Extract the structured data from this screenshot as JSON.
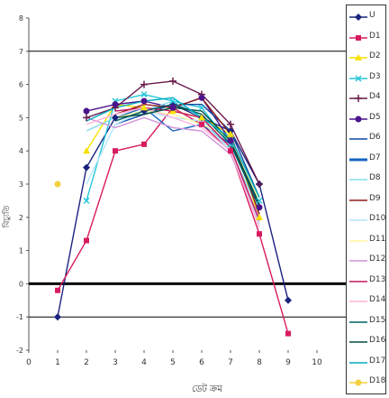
{
  "chart_data": {
    "type": "line",
    "title": "",
    "xlabel": "ডেট ক্রম",
    "ylabel": "বিচ্যুতি",
    "xlim": [
      0,
      11
    ],
    "ylim": [
      -2,
      8
    ],
    "x_ticks": [
      "0",
      "1",
      "2",
      "3",
      "4",
      "5",
      "6",
      "7",
      "8",
      "9",
      "10"
    ],
    "y_ticks": [
      "-2",
      "-1",
      "0",
      "1",
      "2",
      "3",
      "4",
      "5",
      "6",
      "7",
      "8"
    ],
    "reference_lines": [
      {
        "y": 0,
        "weight": "thick"
      },
      {
        "y": -1,
        "weight": "thin"
      },
      {
        "y": 7,
        "weight": "thin"
      }
    ],
    "series": [
      {
        "name": "U",
        "color": "#1a237e",
        "marker": "diamond",
        "points": [
          [
            1,
            -1
          ],
          [
            2,
            3.5
          ],
          [
            3,
            5
          ],
          [
            4,
            5.2
          ],
          [
            5,
            5.4
          ],
          [
            6,
            5
          ],
          [
            7,
            4.6
          ],
          [
            8,
            3
          ],
          [
            9,
            -0.5
          ]
        ]
      },
      {
        "name": "D1",
        "color": "#d81b60",
        "marker": "square",
        "points": [
          [
            1,
            -0.2
          ],
          [
            2,
            1.3
          ],
          [
            3,
            4
          ],
          [
            4,
            4.2
          ],
          [
            5,
            5.3
          ],
          [
            6,
            4.8
          ],
          [
            7,
            4
          ],
          [
            8,
            1.5
          ],
          [
            9,
            -1.5
          ]
        ]
      },
      {
        "name": "D2",
        "color": "#f9e100",
        "marker": "triangle",
        "points": [
          [
            2,
            4
          ],
          [
            3,
            5.4
          ],
          [
            4,
            5.3
          ],
          [
            5,
            5.2
          ],
          [
            6,
            5
          ],
          [
            7,
            4.5
          ],
          [
            8,
            2
          ]
        ]
      },
      {
        "name": "D3",
        "color": "#26c6da",
        "marker": "x",
        "points": [
          [
            2,
            2.5
          ],
          [
            3,
            5.5
          ],
          [
            4,
            5.7
          ],
          [
            5,
            5.5
          ],
          [
            6,
            5.3
          ],
          [
            7,
            4.2
          ],
          [
            8,
            2.5
          ]
        ]
      },
      {
        "name": "D4",
        "color": "#6a1b4d",
        "marker": "star",
        "points": [
          [
            2,
            5
          ],
          [
            3,
            5.3
          ],
          [
            4,
            6
          ],
          [
            5,
            6.1
          ],
          [
            6,
            5.7
          ],
          [
            7,
            4.8
          ],
          [
            8,
            3
          ]
        ]
      },
      {
        "name": "D5",
        "color": "#4a148c",
        "marker": "circle",
        "points": [
          [
            2,
            5.2
          ],
          [
            3,
            5.4
          ],
          [
            4,
            5.5
          ],
          [
            5,
            5.3
          ],
          [
            6,
            5.6
          ],
          [
            7,
            4.3
          ],
          [
            8,
            2.3
          ]
        ]
      },
      {
        "name": "D6",
        "color": "#0d47a1",
        "marker": "none",
        "points": [
          [
            3,
            4.8
          ],
          [
            4,
            5.1
          ],
          [
            5,
            5.4
          ],
          [
            6,
            5.4
          ],
          [
            7,
            4.6
          ],
          [
            8,
            2.6
          ]
        ]
      },
      {
        "name": "D7",
        "color": "#1565c0",
        "marker": "none",
        "points": [
          [
            3,
            5
          ],
          [
            4,
            5.3
          ],
          [
            5,
            4.6
          ],
          [
            6,
            4.8
          ],
          [
            7,
            4.2
          ],
          [
            8,
            2.4
          ]
        ]
      },
      {
        "name": "D8",
        "color": "#80deea",
        "marker": "none",
        "points": [
          [
            2,
            4.6
          ],
          [
            3,
            5
          ],
          [
            4,
            5.2
          ],
          [
            5,
            5.5
          ],
          [
            6,
            5
          ],
          [
            7,
            4
          ],
          [
            8,
            2.2
          ]
        ]
      },
      {
        "name": "D9",
        "color": "#8d1b1b",
        "marker": "none",
        "points": [
          [
            3,
            5.1
          ],
          [
            4,
            5.4
          ],
          [
            5,
            5.3
          ],
          [
            6,
            5.6
          ],
          [
            7,
            4.5
          ],
          [
            8,
            2.1
          ]
        ]
      },
      {
        "name": "D10",
        "color": "#b3e5fc",
        "marker": "none",
        "points": [
          [
            2,
            3
          ],
          [
            3,
            4.8
          ],
          [
            4,
            5.2
          ],
          [
            5,
            5
          ],
          [
            6,
            4.9
          ],
          [
            7,
            4
          ],
          [
            8,
            1.8
          ]
        ]
      },
      {
        "name": "D11",
        "color": "#fff59d",
        "marker": "none",
        "points": [
          [
            3,
            5
          ],
          [
            4,
            5.2
          ],
          [
            5,
            5.1
          ],
          [
            6,
            4.8
          ],
          [
            7,
            4.4
          ],
          [
            8,
            2.5
          ]
        ]
      },
      {
        "name": "D12",
        "color": "#ce93d8",
        "marker": "none",
        "points": [
          [
            2,
            5
          ],
          [
            3,
            4.7
          ],
          [
            4,
            5
          ],
          [
            5,
            4.7
          ],
          [
            6,
            4.6
          ],
          [
            7,
            3.9
          ],
          [
            8,
            2
          ]
        ]
      },
      {
        "name": "D13",
        "color": "#c2185b",
        "marker": "none",
        "points": [
          [
            3,
            5.2
          ],
          [
            4,
            5.3
          ],
          [
            5,
            5.2
          ],
          [
            6,
            5
          ],
          [
            7,
            4.1
          ],
          [
            8,
            1.9
          ]
        ]
      },
      {
        "name": "D14",
        "color": "#ffb3d9",
        "marker": "none",
        "points": [
          [
            2,
            4.8
          ],
          [
            3,
            5.1
          ],
          [
            4,
            5.3
          ],
          [
            5,
            5
          ],
          [
            6,
            4.7
          ],
          [
            7,
            4
          ],
          [
            8,
            1.7
          ]
        ]
      },
      {
        "name": "D15",
        "color": "#006064",
        "marker": "none",
        "points": [
          [
            3,
            4.9
          ],
          [
            4,
            5.2
          ],
          [
            5,
            5.4
          ],
          [
            6,
            5.1
          ],
          [
            7,
            4.2
          ],
          [
            8,
            2.3
          ]
        ]
      },
      {
        "name": "D16",
        "color": "#004d40",
        "marker": "none",
        "points": [
          [
            3,
            5
          ],
          [
            4,
            5.1
          ],
          [
            5,
            5.3
          ],
          [
            6,
            5.2
          ],
          [
            7,
            4.3
          ],
          [
            8,
            2.4
          ]
        ]
      },
      {
        "name": "D17",
        "color": "#00acc1",
        "marker": "none",
        "points": [
          [
            2,
            4.9
          ],
          [
            3,
            5.3
          ],
          [
            4,
            5.5
          ],
          [
            5,
            5.6
          ],
          [
            6,
            5
          ],
          [
            7,
            4.4
          ],
          [
            8,
            2.6
          ]
        ]
      },
      {
        "name": "D18",
        "color": "#f4d03f",
        "marker": "circle",
        "points": [
          [
            1,
            3
          ]
        ]
      }
    ],
    "legend_position": "right",
    "grid": false
  },
  "legend": {
    "items": [
      "U",
      "D1",
      "D2",
      "D3",
      "D4",
      "D5",
      "D6",
      "D7",
      "D8",
      "D9",
      "D10",
      "D11",
      "D12",
      "D13",
      "D14",
      "D15",
      "D16",
      "D17",
      "D18"
    ]
  }
}
